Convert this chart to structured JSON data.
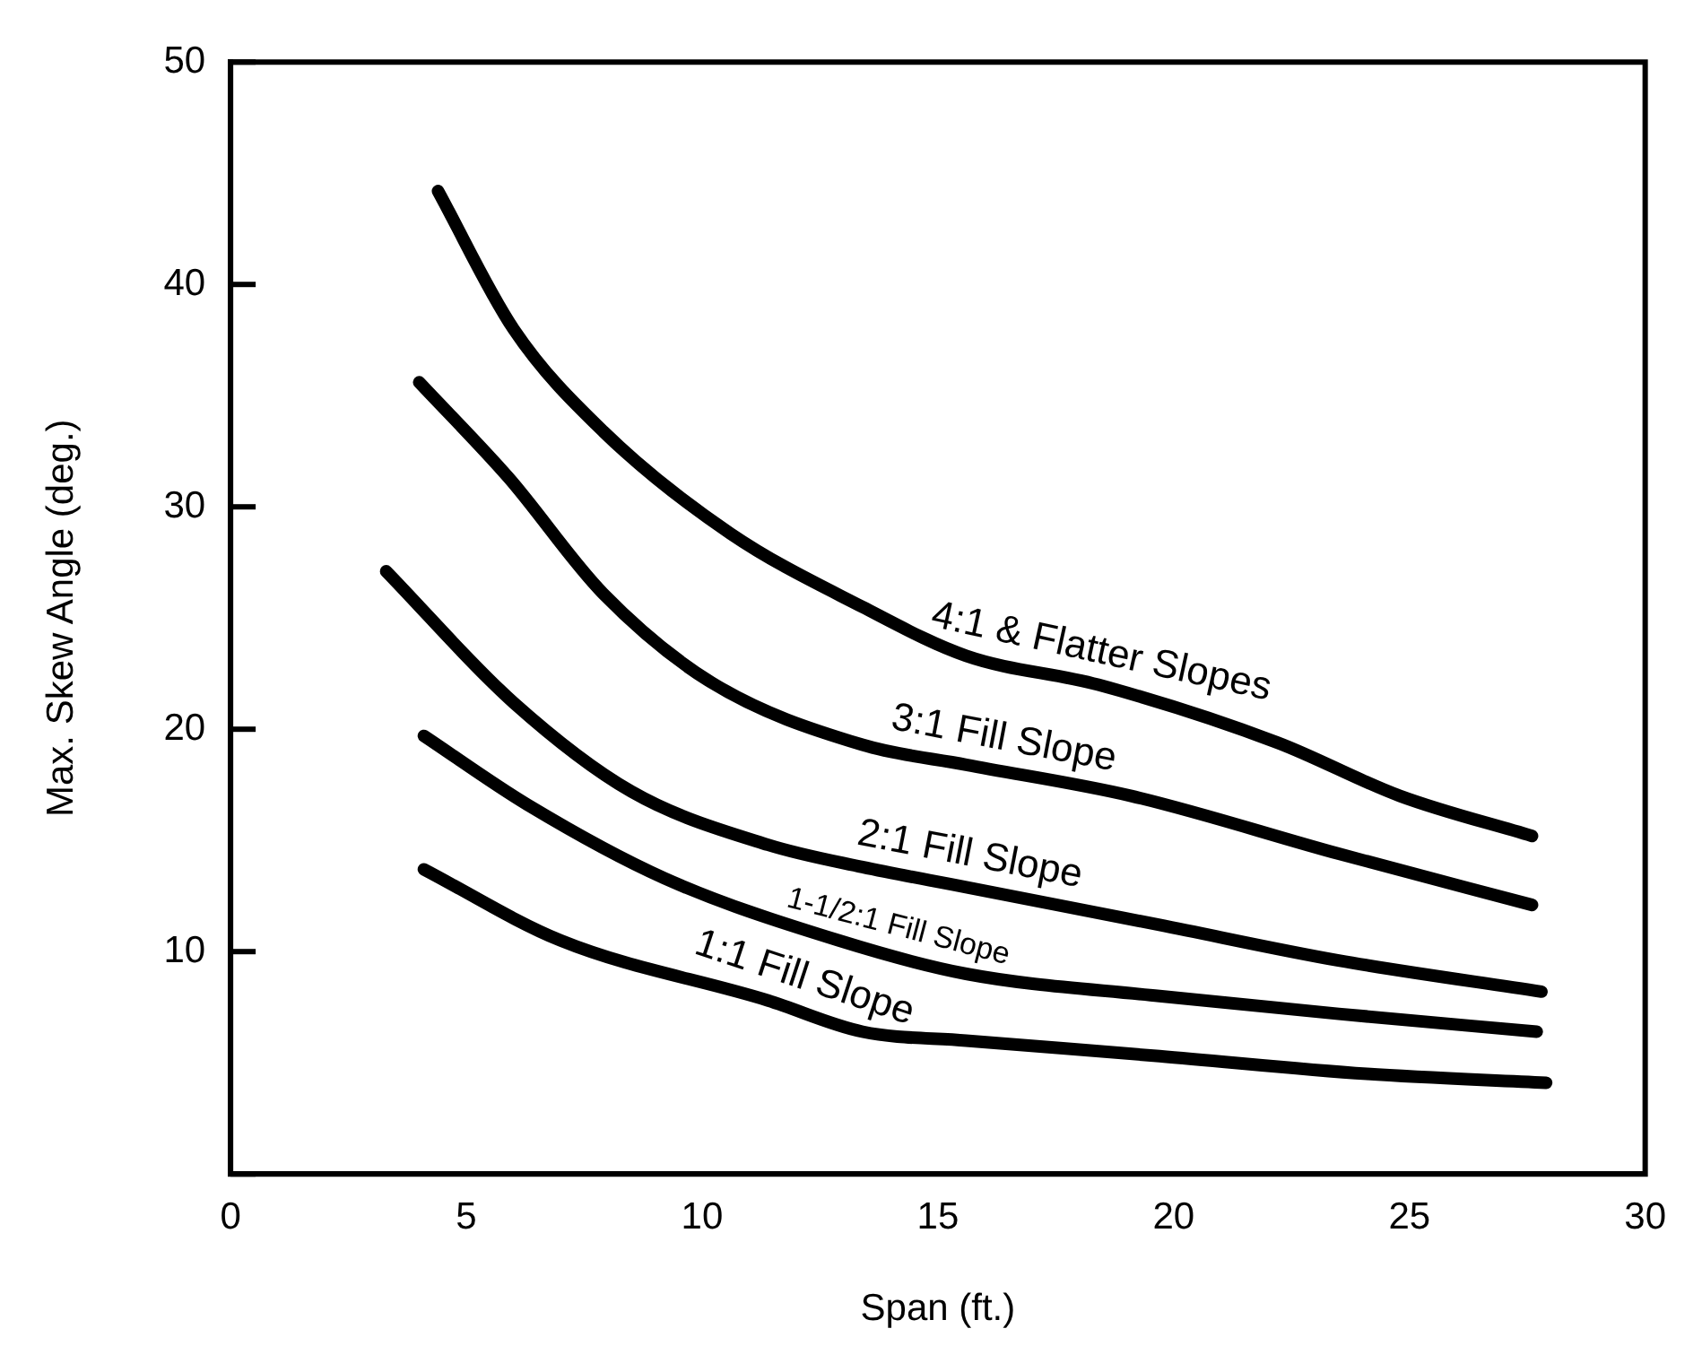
{
  "chart_data": {
    "type": "line",
    "xlabel": "Span (ft.)",
    "ylabel": "Max. Skew Angle (deg.)",
    "xlim": [
      0,
      30
    ],
    "xticks": [
      0,
      5,
      10,
      15,
      20,
      25,
      30
    ],
    "ylim": [
      0,
      50
    ],
    "yticks": [
      {
        "value": 0,
        "label": null
      },
      10,
      20,
      30,
      40,
      50
    ],
    "grid": false,
    "legend": false,
    "marker": "none",
    "line_style": "solid",
    "series": [
      {
        "name": "4:1 & Flatter Slopes",
        "color": "#000000",
        "x": [
          4.4,
          6.0,
          7.9,
          10.6,
          13.4,
          15.6,
          18.4,
          22.2,
          24.8,
          27.6
        ],
        "values": [
          44.2,
          38.0,
          33.4,
          28.8,
          25.5,
          23.3,
          22.0,
          19.4,
          17.0,
          15.2
        ]
      },
      {
        "name": "3:1 Fill Slope",
        "color": "#000000",
        "x": [
          4.0,
          5.9,
          7.9,
          10.2,
          13.4,
          15.6,
          19.1,
          23.5,
          27.6
        ],
        "values": [
          35.6,
          31.3,
          26.1,
          22.1,
          19.3,
          18.4,
          17.0,
          14.4,
          12.1
        ]
      },
      {
        "name": "2:1 Fill Slope",
        "color": "#000000",
        "x": [
          3.3,
          6.0,
          8.5,
          11.4,
          13.4,
          15.6,
          19.7,
          23.5,
          27.8
        ],
        "values": [
          27.1,
          21.2,
          17.2,
          14.8,
          13.8,
          12.9,
          11.2,
          9.6,
          8.2
        ]
      },
      {
        "name": "1-1/2:1 Fill Slope",
        "color": "#000000",
        "x": [
          4.1,
          6.3,
          9.2,
          12.9,
          15.6,
          19.7,
          23.5,
          27.7
        ],
        "values": [
          19.7,
          16.6,
          13.3,
          10.5,
          9.0,
          8.0,
          7.2,
          6.4
        ]
      },
      {
        "name": "1:1 Fill Slope",
        "color": "#000000",
        "x": [
          4.1,
          7.0,
          11.4,
          13.4,
          15.6,
          19.7,
          24.1,
          27.9
        ],
        "values": [
          13.7,
          10.5,
          7.8,
          6.4,
          6.0,
          5.3,
          4.5,
          4.1
        ]
      }
    ]
  }
}
